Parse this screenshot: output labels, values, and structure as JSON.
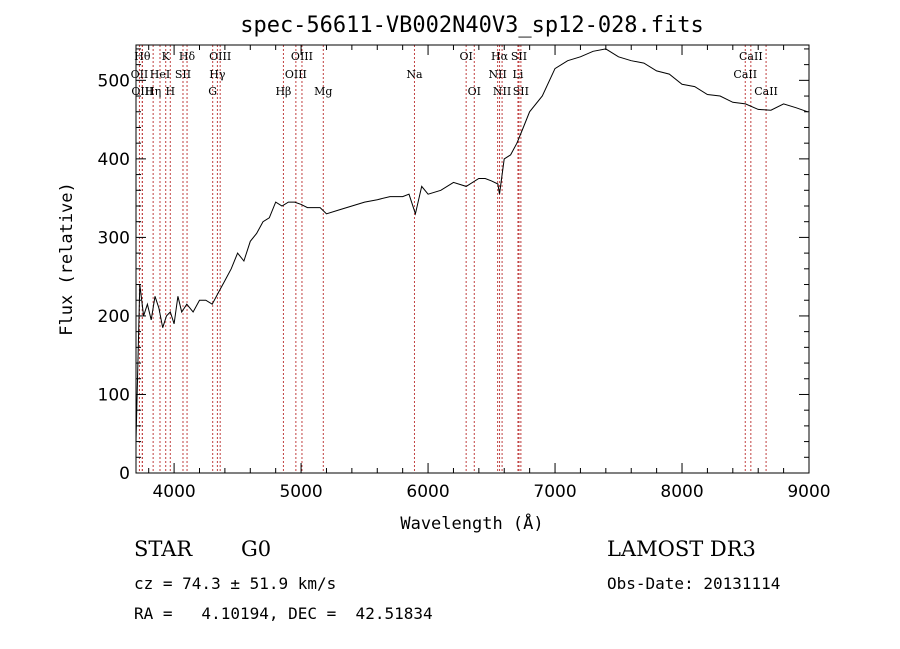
{
  "chart_data": {
    "type": "line",
    "title": "spec-56611-VB002N40V3_sp12-028.fits",
    "xlabel": "Wavelength (Å)",
    "ylabel": "Flux (relative)",
    "xlim": [
      3700,
      9000
    ],
    "ylim": [
      0,
      545
    ],
    "xticks": [
      4000,
      5000,
      6000,
      7000,
      8000,
      9000
    ],
    "yticks": [
      0,
      100,
      200,
      300,
      400,
      500
    ],
    "series": [
      {
        "name": "flux",
        "x": [
          3700,
          3730,
          3760,
          3790,
          3820,
          3850,
          3880,
          3910,
          3940,
          3970,
          4000,
          4030,
          4060,
          4100,
          4150,
          4200,
          4250,
          4300,
          4350,
          4400,
          4450,
          4500,
          4550,
          4600,
          4650,
          4700,
          4750,
          4800,
          4850,
          4900,
          4950,
          5000,
          5050,
          5100,
          5150,
          5200,
          5300,
          5400,
          5500,
          5600,
          5700,
          5800,
          5850,
          5900,
          5950,
          6000,
          6100,
          6200,
          6300,
          6400,
          6450,
          6500,
          6550,
          6563,
          6600,
          6650,
          6700,
          6750,
          6800,
          6900,
          7000,
          7100,
          7200,
          7300,
          7400,
          7500,
          7600,
          7700,
          7800,
          7900,
          8000,
          8100,
          8200,
          8300,
          8400,
          8500,
          8600,
          8700,
          8800,
          8900,
          8990
        ],
        "y": [
          40,
          240,
          200,
          215,
          195,
          225,
          210,
          185,
          200,
          205,
          190,
          225,
          205,
          215,
          205,
          220,
          220,
          215,
          230,
          245,
          260,
          280,
          270,
          295,
          305,
          320,
          325,
          345,
          340,
          345,
          345,
          342,
          338,
          338,
          338,
          330,
          335,
          340,
          345,
          348,
          352,
          352,
          355,
          330,
          365,
          355,
          360,
          370,
          365,
          375,
          375,
          372,
          368,
          355,
          400,
          405,
          420,
          440,
          460,
          480,
          515,
          525,
          530,
          537,
          540,
          530,
          525,
          522,
          512,
          508,
          495,
          492,
          482,
          480,
          472,
          470,
          463,
          462,
          470,
          465,
          460
        ]
      }
    ],
    "spectral_lines": [
      {
        "x": 3727,
        "label": "OII",
        "row": 1
      },
      {
        "x": 3750,
        "label": "Hθ",
        "row": 0
      },
      {
        "x": 3750,
        "label": "OIII",
        "row": 2
      },
      {
        "x": 3835,
        "label": "Hη",
        "row": 2
      },
      {
        "x": 3889,
        "label": "HeI",
        "row": 1
      },
      {
        "x": 3934,
        "label": "K",
        "row": 0
      },
      {
        "x": 3970,
        "label": "H",
        "row": 2
      },
      {
        "x": 4070,
        "label": "SII",
        "row": 1
      },
      {
        "x": 4102,
        "label": "Hδ",
        "row": 0
      },
      {
        "x": 4304,
        "label": "G",
        "row": 2
      },
      {
        "x": 4341,
        "label": "Hγ",
        "row": 1
      },
      {
        "x": 4363,
        "label": "OIII",
        "row": 0
      },
      {
        "x": 4861,
        "label": "Hβ",
        "row": 2
      },
      {
        "x": 4959,
        "label": "OIII",
        "row": 1
      },
      {
        "x": 5007,
        "label": "OIII",
        "row": 0
      },
      {
        "x": 5175,
        "label": "Mg",
        "row": 2
      },
      {
        "x": 5893,
        "label": "Na",
        "row": 1
      },
      {
        "x": 6300,
        "label": "OI",
        "row": 0
      },
      {
        "x": 6364,
        "label": "OI",
        "row": 2
      },
      {
        "x": 6548,
        "label": "NII",
        "row": 1
      },
      {
        "x": 6563,
        "label": "Hα",
        "row": 0
      },
      {
        "x": 6583,
        "label": "NII",
        "row": 2
      },
      {
        "x": 6708,
        "label": "Li",
        "row": 1
      },
      {
        "x": 6716,
        "label": "SII",
        "row": 0
      },
      {
        "x": 6731,
        "label": "SII",
        "row": 2
      },
      {
        "x": 8498,
        "label": "CaII",
        "row": 1
      },
      {
        "x": 8542,
        "label": "CaII",
        "row": 0
      },
      {
        "x": 8662,
        "label": "CaII",
        "row": 2
      }
    ]
  },
  "info": {
    "class": "STAR",
    "subclass": "G0",
    "survey": "LAMOST DR3",
    "cz": "cz = 74.3 ± 51.9 km/s",
    "obs_date": "Obs-Date: 20131114",
    "coords": "RA =   4.10194, DEC =  42.51834"
  },
  "colors": {
    "line_marker": "#c04040",
    "spectrum": "#000000"
  }
}
